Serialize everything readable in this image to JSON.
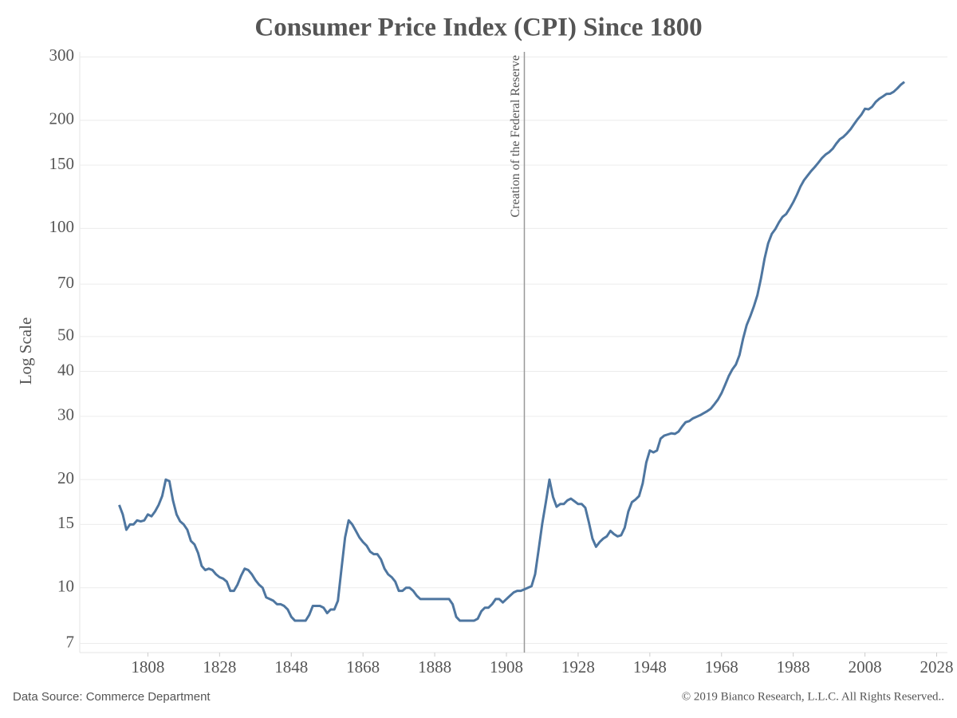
{
  "chart_data": {
    "type": "line",
    "title": "Consumer Price Index (CPI) Since 1800",
    "ylabel": "Log Scale",
    "source": "Data Source: Commerce Department",
    "credit": "© 2019 Bianco Research, L.L.C. All Rights Reserved..",
    "annotations": [
      {
        "x": 1913,
        "text": "Creation of the Federal Reserve"
      }
    ],
    "log_scale": "y",
    "grid": true,
    "xlim": [
      1789,
      2031
    ],
    "ylim": [
      6.6,
      310
    ],
    "xticks": [
      1808,
      1828,
      1848,
      1868,
      1888,
      1908,
      1928,
      1948,
      1968,
      1988,
      2008,
      2028
    ],
    "yticks": [
      7,
      10,
      15,
      20,
      30,
      40,
      50,
      70,
      100,
      150,
      200,
      300
    ],
    "x": [
      1800,
      1801,
      1802,
      1803,
      1804,
      1805,
      1806,
      1807,
      1808,
      1809,
      1810,
      1811,
      1812,
      1813,
      1814,
      1815,
      1816,
      1817,
      1818,
      1819,
      1820,
      1821,
      1822,
      1823,
      1824,
      1825,
      1826,
      1827,
      1828,
      1829,
      1830,
      1831,
      1832,
      1833,
      1834,
      1835,
      1836,
      1837,
      1838,
      1839,
      1840,
      1841,
      1842,
      1843,
      1844,
      1845,
      1846,
      1847,
      1848,
      1849,
      1850,
      1851,
      1852,
      1853,
      1854,
      1855,
      1856,
      1857,
      1858,
      1859,
      1860,
      1861,
      1862,
      1863,
      1864,
      1865,
      1866,
      1867,
      1868,
      1869,
      1870,
      1871,
      1872,
      1873,
      1874,
      1875,
      1876,
      1877,
      1878,
      1879,
      1880,
      1881,
      1882,
      1883,
      1884,
      1885,
      1886,
      1887,
      1888,
      1889,
      1890,
      1891,
      1892,
      1893,
      1894,
      1895,
      1896,
      1897,
      1898,
      1899,
      1900,
      1901,
      1902,
      1903,
      1904,
      1905,
      1906,
      1907,
      1908,
      1909,
      1910,
      1911,
      1912,
      1913,
      1914,
      1915,
      1916,
      1917,
      1918,
      1919,
      1920,
      1921,
      1922,
      1923,
      1924,
      1925,
      1926,
      1927,
      1928,
      1929,
      1930,
      1931,
      1932,
      1933,
      1934,
      1935,
      1936,
      1937,
      1938,
      1939,
      1940,
      1941,
      1942,
      1943,
      1944,
      1945,
      1946,
      1947,
      1948,
      1949,
      1950,
      1951,
      1952,
      1953,
      1954,
      1955,
      1956,
      1957,
      1958,
      1959,
      1960,
      1961,
      1962,
      1963,
      1964,
      1965,
      1966,
      1967,
      1968,
      1969,
      1970,
      1971,
      1972,
      1973,
      1974,
      1975,
      1976,
      1977,
      1978,
      1979,
      1980,
      1981,
      1982,
      1983,
      1984,
      1985,
      1986,
      1987,
      1988,
      1989,
      1990,
      1991,
      1992,
      1993,
      1994,
      1995,
      1996,
      1997,
      1998,
      1999,
      2000,
      2001,
      2002,
      2003,
      2004,
      2005,
      2006,
      2007,
      2008,
      2009,
      2010,
      2011,
      2012,
      2013,
      2014,
      2015,
      2016,
      2017,
      2018,
      2019
    ],
    "series": [
      {
        "name": "CPI",
        "color": "#4e76a0",
        "values": [
          17,
          16,
          14.5,
          15,
          15,
          15.4,
          15.3,
          15.4,
          16,
          15.8,
          16.3,
          17,
          18,
          20,
          19.8,
          17.5,
          16,
          15.3,
          15,
          14.5,
          13.5,
          13.2,
          12.5,
          11.5,
          11.2,
          11.3,
          11.2,
          10.9,
          10.7,
          10.6,
          10.4,
          9.8,
          9.8,
          10.2,
          10.8,
          11.3,
          11.2,
          10.9,
          10.5,
          10.2,
          10.0,
          9.4,
          9.3,
          9.2,
          9.0,
          9.0,
          8.9,
          8.7,
          8.3,
          8.1,
          8.1,
          8.1,
          8.1,
          8.4,
          8.9,
          8.9,
          8.9,
          8.8,
          8.5,
          8.7,
          8.7,
          9.2,
          11.3,
          13.8,
          15.4,
          15.0,
          14.4,
          13.8,
          13.4,
          13.1,
          12.6,
          12.4,
          12.4,
          12.0,
          11.3,
          10.9,
          10.7,
          10.4,
          9.8,
          9.8,
          10.0,
          10.0,
          9.8,
          9.5,
          9.3,
          9.3,
          9.3,
          9.3,
          9.3,
          9.3,
          9.3,
          9.3,
          9.3,
          9.0,
          8.3,
          8.1,
          8.1,
          8.1,
          8.1,
          8.1,
          8.2,
          8.6,
          8.8,
          8.8,
          9.0,
          9.3,
          9.3,
          9.1,
          9.3,
          9.5,
          9.7,
          9.8,
          9.8,
          9.9,
          10.0,
          10.1,
          10.9,
          12.8,
          15.1,
          17.3,
          20.0,
          17.9,
          16.8,
          17.1,
          17.1,
          17.5,
          17.7,
          17.4,
          17.1,
          17.1,
          16.7,
          15.2,
          13.7,
          13.0,
          13.4,
          13.7,
          13.9,
          14.4,
          14.1,
          13.9,
          14.0,
          14.7,
          16.3,
          17.3,
          17.6,
          18.0,
          19.5,
          22.3,
          24.1,
          23.8,
          24.1,
          26.0,
          26.5,
          26.7,
          26.9,
          26.8,
          27.2,
          28.1,
          28.9,
          29.1,
          29.6,
          29.9,
          30.2,
          30.6,
          31.0,
          31.5,
          32.4,
          33.4,
          34.8,
          36.7,
          38.8,
          40.5,
          41.8,
          44.4,
          49.3,
          53.8,
          56.9,
          60.6,
          65.2,
          72.6,
          82.4,
          90.9,
          96.5,
          99.6,
          103.9,
          107.6,
          109.6,
          113.6,
          118.3,
          124.0,
          130.7,
          136.2,
          140.3,
          144.5,
          148.2,
          152.4,
          156.9,
          160.5,
          163.0,
          166.6,
          172.2,
          177.1,
          179.9,
          184.0,
          188.9,
          195.3,
          201.6,
          207.3,
          215.3,
          214.5,
          218.1,
          224.9,
          229.6,
          233.0,
          236.7,
          237.0,
          240.0,
          245.1,
          251.1,
          255.7
        ]
      }
    ]
  }
}
